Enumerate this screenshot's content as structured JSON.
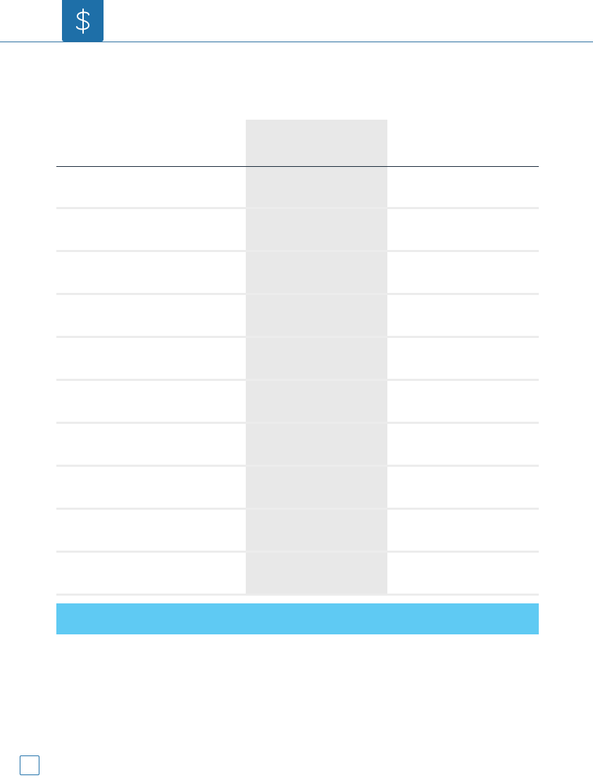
{
  "header": {
    "logo_icon": "dollar-sign-icon",
    "accent_color": "#1e6fa8"
  },
  "table": {
    "columns": [
      "",
      "",
      ""
    ],
    "rows": [
      [
        "",
        "",
        ""
      ],
      [
        "",
        "",
        ""
      ],
      [
        "",
        "",
        ""
      ],
      [
        "",
        "",
        ""
      ],
      [
        "",
        "",
        ""
      ],
      [
        "",
        "",
        ""
      ],
      [
        "",
        "",
        ""
      ],
      [
        "",
        "",
        ""
      ],
      [
        "",
        "",
        ""
      ],
      [
        "",
        "",
        ""
      ]
    ],
    "total_bar_color": "#5fcaf3",
    "total_label": ""
  },
  "footer": {
    "page_number": ""
  }
}
